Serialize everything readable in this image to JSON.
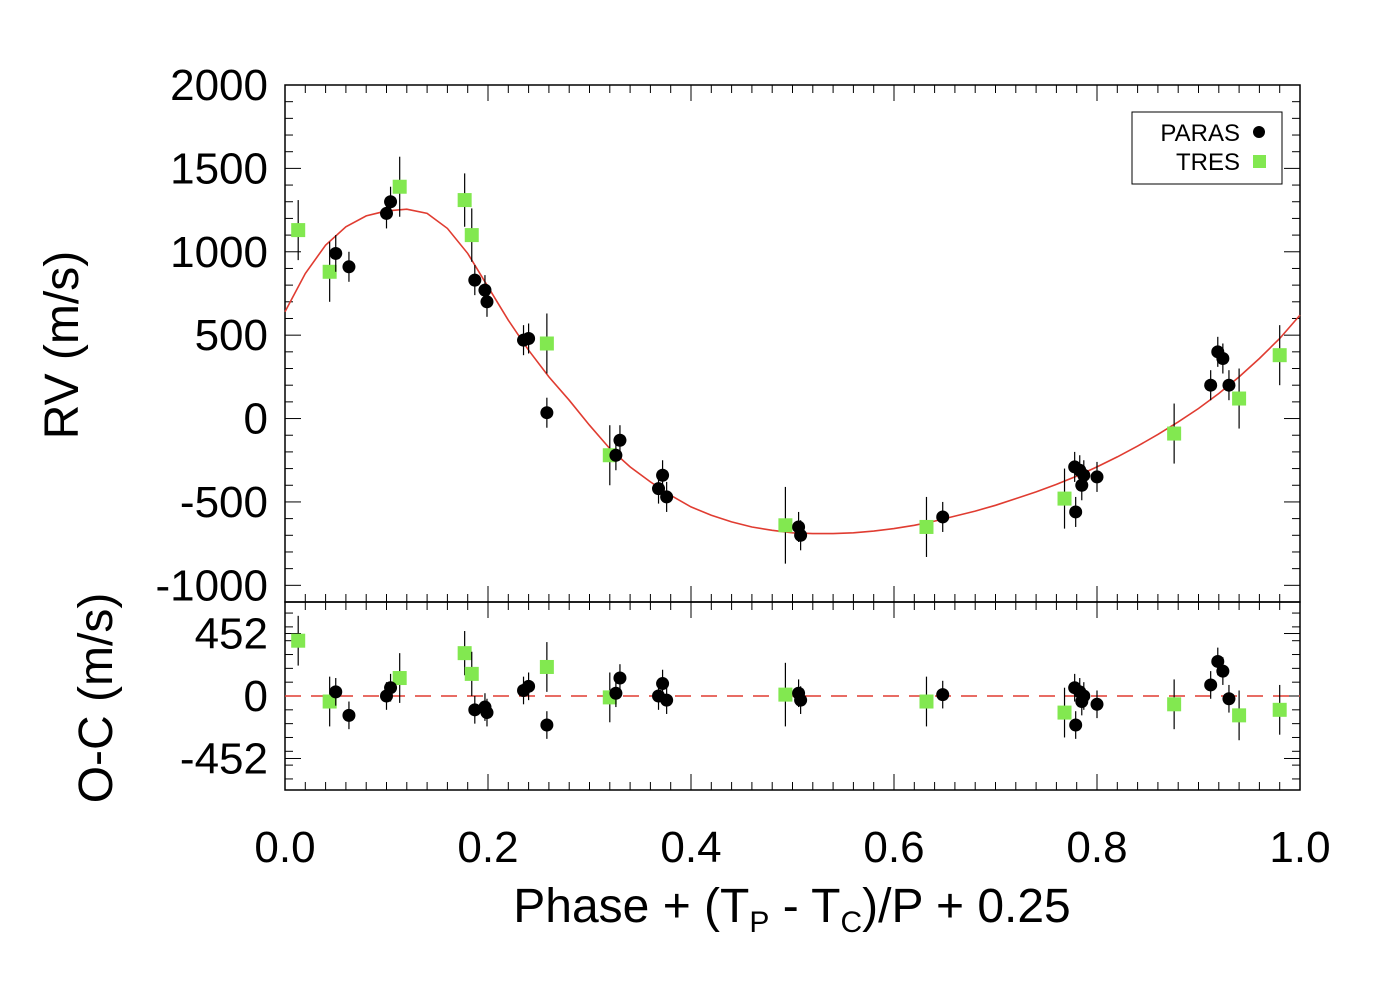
{
  "chart_data": {
    "type": "scatter",
    "xlabel_parts": {
      "main": "Phase + (T",
      "sub_p": "P",
      "minus": " - T",
      "sub_c": "C",
      "tail": ")/P + 0.25"
    },
    "xlim": [
      0.0,
      1.0
    ],
    "x_ticks": [
      "0.0",
      "0.2",
      "0.4",
      "0.6",
      "0.8",
      "1.0"
    ],
    "top_panel": {
      "ylabel": "RV (m/s)",
      "ylim": [
        -1100,
        2000
      ],
      "y_ticks": [
        "2000",
        "1500",
        "1000",
        "500",
        "0",
        "-500",
        "-1000"
      ],
      "model": {
        "name": "",
        "color": "#e03c31",
        "points": [
          [
            0.0,
            640
          ],
          [
            0.02,
            870
          ],
          [
            0.04,
            1040
          ],
          [
            0.06,
            1150
          ],
          [
            0.08,
            1215
          ],
          [
            0.1,
            1245
          ],
          [
            0.12,
            1255
          ],
          [
            0.14,
            1230
          ],
          [
            0.16,
            1140
          ],
          [
            0.18,
            990
          ],
          [
            0.2,
            790
          ],
          [
            0.22,
            590
          ],
          [
            0.24,
            410
          ],
          [
            0.26,
            250
          ],
          [
            0.28,
            110
          ],
          [
            0.3,
            -40
          ],
          [
            0.32,
            -180
          ],
          [
            0.34,
            -290
          ],
          [
            0.36,
            -380
          ],
          [
            0.38,
            -460
          ],
          [
            0.4,
            -530
          ],
          [
            0.42,
            -580
          ],
          [
            0.44,
            -620
          ],
          [
            0.46,
            -650
          ],
          [
            0.48,
            -670
          ],
          [
            0.5,
            -685
          ],
          [
            0.52,
            -690
          ],
          [
            0.54,
            -690
          ],
          [
            0.56,
            -685
          ],
          [
            0.58,
            -675
          ],
          [
            0.6,
            -660
          ],
          [
            0.62,
            -640
          ],
          [
            0.64,
            -615
          ],
          [
            0.66,
            -585
          ],
          [
            0.68,
            -555
          ],
          [
            0.7,
            -520
          ],
          [
            0.72,
            -480
          ],
          [
            0.74,
            -440
          ],
          [
            0.76,
            -395
          ],
          [
            0.78,
            -345
          ],
          [
            0.8,
            -290
          ],
          [
            0.82,
            -230
          ],
          [
            0.84,
            -165
          ],
          [
            0.86,
            -95
          ],
          [
            0.88,
            -20
          ],
          [
            0.9,
            60
          ],
          [
            0.92,
            150
          ],
          [
            0.94,
            250
          ],
          [
            0.96,
            360
          ],
          [
            0.98,
            480
          ],
          [
            1.0,
            620
          ]
        ]
      }
    },
    "bottom_panel": {
      "ylabel": "O-C (m/s)",
      "ylim": [
        -680,
        680
      ],
      "y_ticks": [
        "452",
        "0",
        "-452"
      ],
      "zero_line_color": "#e03c31"
    },
    "series": [
      {
        "name": "PARAS",
        "marker": "circle",
        "color": "#000000",
        "points": [
          {
            "x": 0.05,
            "rv": 990,
            "rv_err": 110,
            "oc": 30,
            "oc_err": 100
          },
          {
            "x": 0.063,
            "rv": 910,
            "rv_err": 90,
            "oc": -140,
            "oc_err": 100
          },
          {
            "x": 0.1,
            "rv": 1230,
            "rv_err": 90,
            "oc": 0,
            "oc_err": 100
          },
          {
            "x": 0.104,
            "rv": 1300,
            "rv_err": 90,
            "oc": 60,
            "oc_err": 100
          },
          {
            "x": 0.187,
            "rv": 830,
            "rv_err": 90,
            "oc": -100,
            "oc_err": 100
          },
          {
            "x": 0.197,
            "rv": 770,
            "rv_err": 90,
            "oc": -80,
            "oc_err": 100
          },
          {
            "x": 0.199,
            "rv": 700,
            "rv_err": 90,
            "oc": -120,
            "oc_err": 100
          },
          {
            "x": 0.235,
            "rv": 470,
            "rv_err": 90,
            "oc": 40,
            "oc_err": 100
          },
          {
            "x": 0.24,
            "rv": 480,
            "rv_err": 90,
            "oc": 70,
            "oc_err": 100
          },
          {
            "x": 0.258,
            "rv": 35,
            "rv_err": 90,
            "oc": -210,
            "oc_err": 100
          },
          {
            "x": 0.326,
            "rv": -220,
            "rv_err": 90,
            "oc": 20,
            "oc_err": 100
          },
          {
            "x": 0.33,
            "rv": -130,
            "rv_err": 90,
            "oc": 130,
            "oc_err": 100
          },
          {
            "x": 0.368,
            "rv": -420,
            "rv_err": 90,
            "oc": 0,
            "oc_err": 100
          },
          {
            "x": 0.372,
            "rv": -340,
            "rv_err": 90,
            "oc": 90,
            "oc_err": 100
          },
          {
            "x": 0.376,
            "rv": -470,
            "rv_err": 90,
            "oc": -30,
            "oc_err": 100
          },
          {
            "x": 0.506,
            "rv": -650,
            "rv_err": 90,
            "oc": 20,
            "oc_err": 100
          },
          {
            "x": 0.508,
            "rv": -700,
            "rv_err": 90,
            "oc": -30,
            "oc_err": 100
          },
          {
            "x": 0.648,
            "rv": -590,
            "rv_err": 90,
            "oc": 10,
            "oc_err": 100
          },
          {
            "x": 0.778,
            "rv": -290,
            "rv_err": 90,
            "oc": 60,
            "oc_err": 100
          },
          {
            "x": 0.779,
            "rv": -560,
            "rv_err": 90,
            "oc": -210,
            "oc_err": 100
          },
          {
            "x": 0.783,
            "rv": -310,
            "rv_err": 90,
            "oc": 30,
            "oc_err": 100
          },
          {
            "x": 0.785,
            "rv": -400,
            "rv_err": 90,
            "oc": -40,
            "oc_err": 100
          },
          {
            "x": 0.787,
            "rv": -340,
            "rv_err": 90,
            "oc": 0,
            "oc_err": 100
          },
          {
            "x": 0.8,
            "rv": -350,
            "rv_err": 90,
            "oc": -60,
            "oc_err": 100
          },
          {
            "x": 0.912,
            "rv": 200,
            "rv_err": 90,
            "oc": 80,
            "oc_err": 100
          },
          {
            "x": 0.919,
            "rv": 400,
            "rv_err": 90,
            "oc": 250,
            "oc_err": 100
          },
          {
            "x": 0.924,
            "rv": 360,
            "rv_err": 90,
            "oc": 180,
            "oc_err": 100
          },
          {
            "x": 0.93,
            "rv": 200,
            "rv_err": 90,
            "oc": -20,
            "oc_err": 100
          }
        ]
      },
      {
        "name": "TRES",
        "marker": "square",
        "color": "#82e850",
        "points": [
          {
            "x": 0.013,
            "rv": 1130,
            "rv_err": 180,
            "oc": 400,
            "oc_err": 180
          },
          {
            "x": 0.044,
            "rv": 880,
            "rv_err": 180,
            "oc": -40,
            "oc_err": 180
          },
          {
            "x": 0.113,
            "rv": 1390,
            "rv_err": 180,
            "oc": 130,
            "oc_err": 180
          },
          {
            "x": 0.177,
            "rv": 1310,
            "rv_err": 160,
            "oc": 310,
            "oc_err": 160
          },
          {
            "x": 0.184,
            "rv": 1100,
            "rv_err": 160,
            "oc": 160,
            "oc_err": 160
          },
          {
            "x": 0.258,
            "rv": 450,
            "rv_err": 180,
            "oc": 210,
            "oc_err": 180
          },
          {
            "x": 0.32,
            "rv": -220,
            "rv_err": 180,
            "oc": -10,
            "oc_err": 180
          },
          {
            "x": 0.493,
            "rv": -640,
            "rv_err": 230,
            "oc": 10,
            "oc_err": 230
          },
          {
            "x": 0.632,
            "rv": -650,
            "rv_err": 180,
            "oc": -40,
            "oc_err": 180
          },
          {
            "x": 0.768,
            "rv": -480,
            "rv_err": 180,
            "oc": -120,
            "oc_err": 180
          },
          {
            "x": 0.876,
            "rv": -90,
            "rv_err": 180,
            "oc": -60,
            "oc_err": 180
          },
          {
            "x": 0.94,
            "rv": 120,
            "rv_err": 180,
            "oc": -140,
            "oc_err": 180
          },
          {
            "x": 0.98,
            "rv": 380,
            "rv_err": 180,
            "oc": -100,
            "oc_err": 180
          }
        ]
      }
    ]
  }
}
